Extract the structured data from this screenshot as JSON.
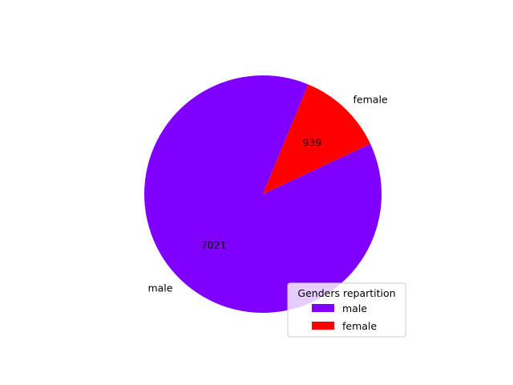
{
  "chart_data": {
    "type": "pie",
    "title": "",
    "categories": [
      "male",
      "female"
    ],
    "values": [
      7021,
      939
    ],
    "value_labels": [
      "7021",
      "939"
    ],
    "colors": [
      "#8000ff",
      "#ff0000"
    ],
    "legend": {
      "title": "Genders repartition",
      "entries": [
        "male",
        "female"
      ],
      "placement": "lower-right"
    }
  }
}
